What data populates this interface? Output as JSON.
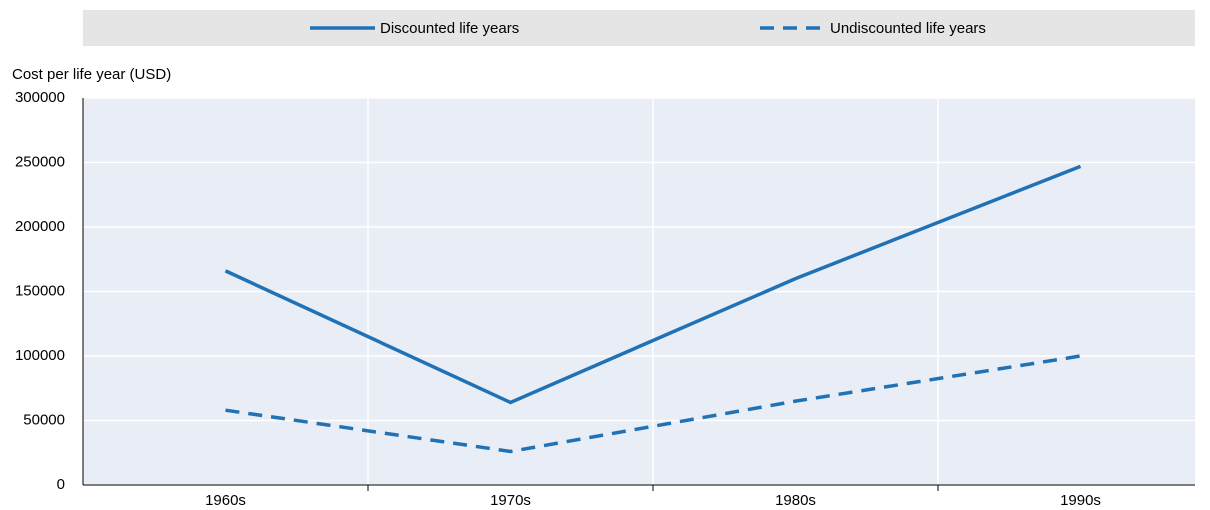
{
  "chart_data": {
    "type": "line",
    "y_label": "Cost per life year (USD)",
    "categories": [
      "1960s",
      "1970s",
      "1980s",
      "1990s"
    ],
    "series": [
      {
        "name": "Discounted life years",
        "color": "#2072b5",
        "dash": false,
        "values": [
          166000,
          64000,
          160000,
          247000
        ]
      },
      {
        "name": "Undiscounted life years",
        "color": "#2072b5",
        "dash": true,
        "values": [
          58000,
          26000,
          65000,
          100000
        ]
      }
    ],
    "ylim": [
      0,
      300000
    ],
    "yticks": [
      0,
      50000,
      100000,
      150000,
      200000,
      250000,
      300000
    ],
    "grid": true,
    "legend": "top"
  }
}
